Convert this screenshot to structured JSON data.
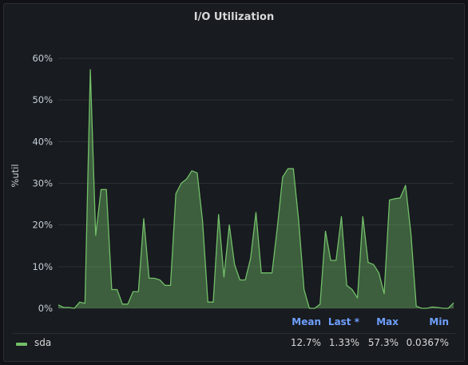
{
  "panel": {
    "title": "I/O Utilization"
  },
  "chart_data": {
    "type": "area",
    "title": "I/O Utilization",
    "xlabel": "",
    "ylabel": "%util",
    "ylim": [
      0,
      60
    ],
    "y_ticks": [
      "0%",
      "10%",
      "20%",
      "30%",
      "40%",
      "50%",
      "60%"
    ],
    "grid": true,
    "legend_placement": "bottom",
    "series": [
      {
        "name": "sda",
        "color": "#73bf69",
        "values": [
          0.8,
          0.2,
          0.2,
          0.0,
          1.5,
          1.2,
          57.3,
          17.5,
          28.5,
          28.5,
          4.5,
          4.5,
          1.0,
          1.0,
          4.0,
          4.0,
          21.5,
          7.2,
          7.2,
          6.8,
          5.5,
          5.5,
          27.5,
          30.0,
          31.0,
          33.0,
          32.5,
          21.0,
          1.5,
          1.5,
          22.5,
          7.5,
          20.0,
          10.5,
          6.8,
          6.8,
          12.0,
          23.0,
          8.5,
          8.5,
          8.5,
          19.5,
          31.5,
          33.5,
          33.5,
          21.0,
          4.5,
          0.0,
          0.0,
          1.0,
          18.5,
          11.5,
          11.5,
          22.0,
          5.5,
          4.5,
          2.5,
          22.0,
          11.0,
          10.5,
          8.5,
          3.5,
          26.0,
          26.3,
          26.5,
          29.5,
          18.0,
          0.5,
          0.0,
          0.0,
          0.3,
          0.2,
          0.0,
          0.0,
          1.3
        ]
      }
    ]
  },
  "legend": {
    "headers": {
      "mean": "Mean",
      "last": "Last *",
      "max": "Max",
      "min": "Min"
    },
    "rows": [
      {
        "name": "sda",
        "color": "#73bf69",
        "mean": "12.7%",
        "last": "1.33%",
        "max": "57.3%",
        "min": "0.0367%"
      }
    ]
  }
}
